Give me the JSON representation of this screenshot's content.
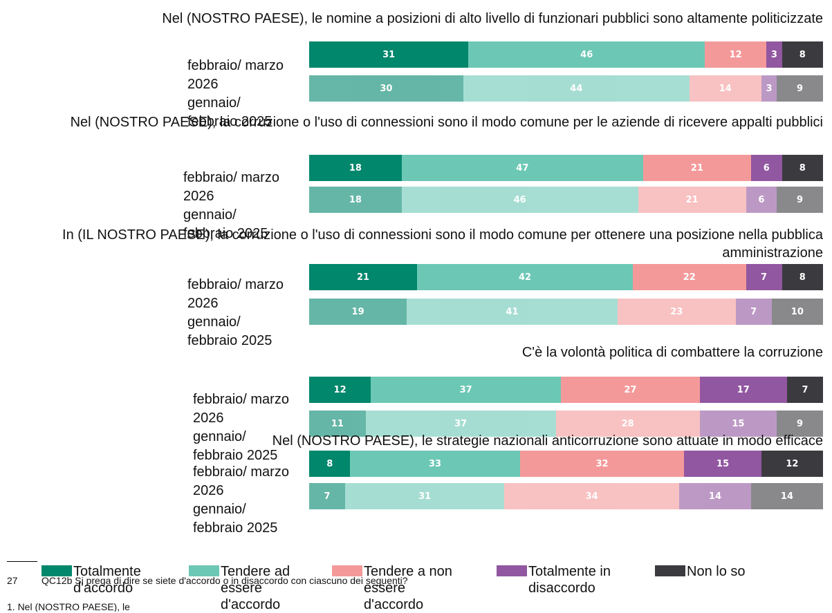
{
  "chart_data": [
    {
      "type": "bar",
      "title": "Nel (NOSTRO PAESE), le nomine a posizioni di alto livello di funzionari pubblici sono altamente politicizzate",
      "categories": [
        "febbraio/ marzo 2026",
        "gennaio/ febbraio 2025"
      ],
      "xlim": [
        0,
        100
      ],
      "series": [
        {
          "values": [
            31,
            30
          ]
        },
        {
          "values": [
            46,
            44
          ]
        },
        {
          "values": [
            12,
            14
          ]
        },
        {
          "values": [
            3,
            3
          ]
        },
        {
          "values": [
            8,
            9
          ]
        }
      ]
    },
    {
      "type": "bar",
      "title": "Nel (NOSTRO PAESE), la corruzione o l'uso di connessioni sono il modo comune per le aziende di ricevere appalti pubblici",
      "categories": [
        "febbraio/ marzo 2026",
        "gennaio/ febbraio 2025"
      ],
      "xlim": [
        0,
        100
      ],
      "series": [
        {
          "values": [
            18,
            18
          ]
        },
        {
          "values": [
            47,
            46
          ]
        },
        {
          "values": [
            21,
            21
          ]
        },
        {
          "values": [
            6,
            6
          ]
        },
        {
          "values": [
            8,
            9
          ]
        }
      ]
    },
    {
      "type": "bar",
      "title": "In (IL NOSTRO PAESE), la corruzione o l'uso di connessioni sono il modo comune per ottenere una posizione nella pubblica amministrazione",
      "categories": [
        "febbraio/ marzo 2026",
        "gennaio/ febbraio 2025"
      ],
      "xlim": [
        0,
        100
      ],
      "series": [
        {
          "values": [
            21,
            19
          ]
        },
        {
          "values": [
            42,
            41
          ]
        },
        {
          "values": [
            22,
            23
          ]
        },
        {
          "values": [
            7,
            7
          ]
        },
        {
          "values": [
            8,
            10
          ]
        }
      ]
    },
    {
      "type": "bar",
      "title": "C'è la volontà politica di combattere la corruzione",
      "categories": [
        "febbraio/ marzo 2026",
        "gennaio/ febbraio 2025"
      ],
      "xlim": [
        0,
        100
      ],
      "series": [
        {
          "values": [
            12,
            11
          ]
        },
        {
          "values": [
            37,
            37
          ]
        },
        {
          "values": [
            27,
            28
          ]
        },
        {
          "values": [
            17,
            15
          ]
        },
        {
          "values": [
            7,
            9
          ]
        }
      ]
    },
    {
      "type": "bar",
      "title": "Nel (NOSTRO PAESE), le strategie nazionali anticorruzione sono attuate in modo efficace",
      "categories": [
        "febbraio/ marzo 2026",
        "gennaio/ febbraio 2025"
      ],
      "xlim": [
        0,
        100
      ],
      "series": [
        {
          "values": [
            8,
            7
          ]
        },
        {
          "values": [
            33,
            31
          ]
        },
        {
          "values": [
            32,
            34
          ]
        },
        {
          "values": [
            15,
            14
          ]
        },
        {
          "values": [
            12,
            14
          ]
        }
      ]
    }
  ],
  "legend": [
    {
      "name": "Totalmente d'accordo",
      "color": "#00876c"
    },
    {
      "name": "Tendere ad essere d'accordo",
      "color": "#6cc8b5"
    },
    {
      "name": "Tendere a non essere d'accordo",
      "color": "#f4999a"
    },
    {
      "name": "Totalmente in disaccordo",
      "color": "#9157a0"
    },
    {
      "name": "Non lo so",
      "color": "#3b3b3f"
    }
  ],
  "footnote": {
    "number": "27",
    "text": "QC12b Si prega di dire se siete d'accordo o in disaccordo con ciascuno dei seguenti?",
    "item": "1. Nel (NOSTRO PAESE), le"
  }
}
